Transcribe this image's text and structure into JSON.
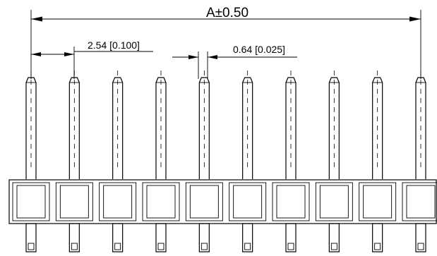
{
  "dimensions": {
    "overall_length": "A±0.50",
    "pitch": "2.54 [0.100]",
    "pin_width": "0.64 [0.025]"
  },
  "pin_count": 10
}
